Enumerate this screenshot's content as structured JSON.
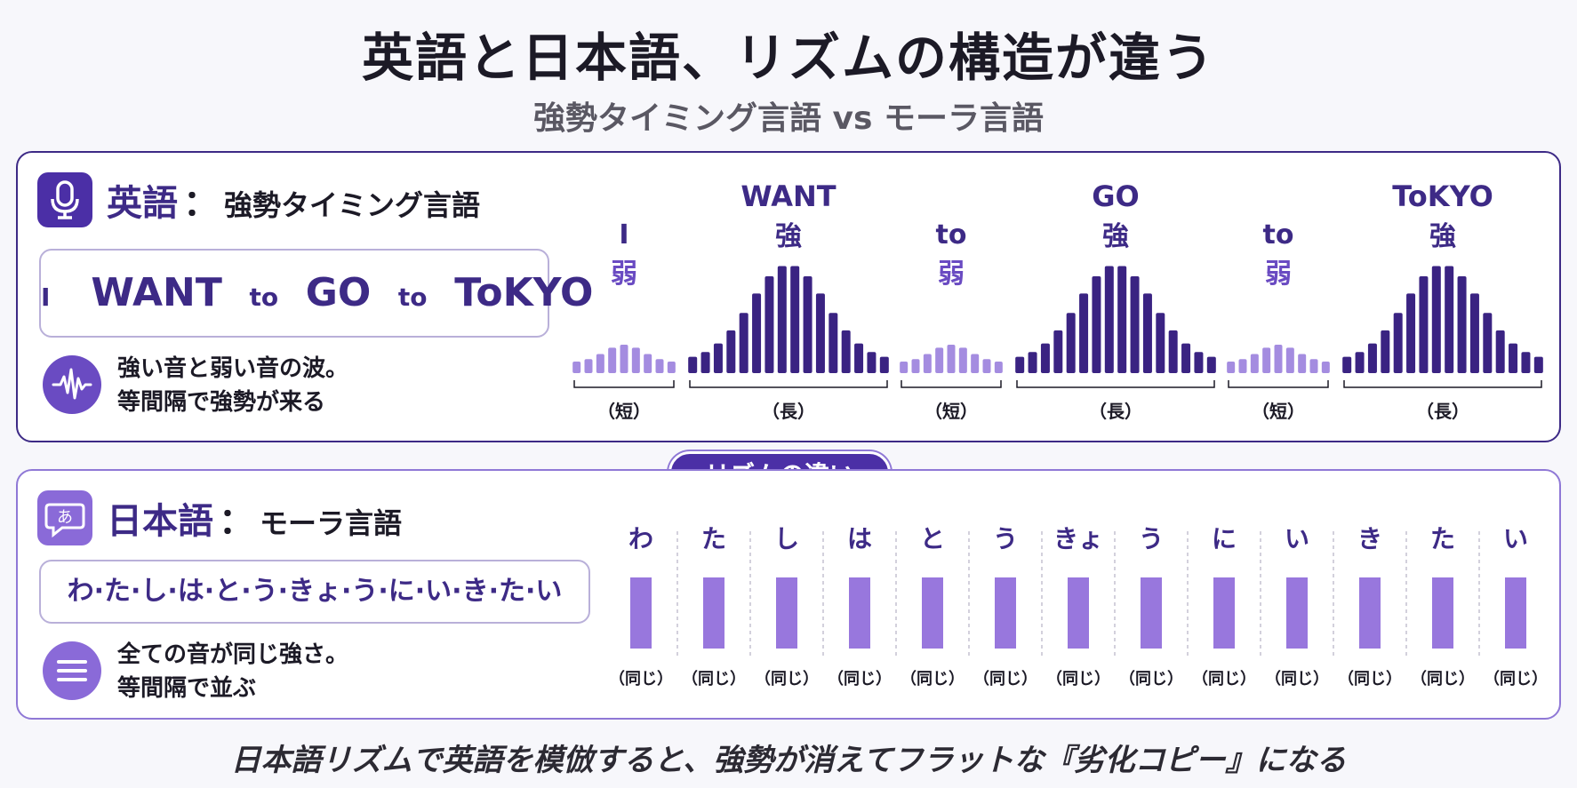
{
  "title": "英語と日本語、リズムの構造が違う",
  "subtitle": "強勢タイミング言語 vs モーラ言語",
  "english": {
    "lang": "英語",
    "colon": "：",
    "kind": "強勢タイミング言語",
    "sentence": {
      "w1": "I",
      "w2": "WANT",
      "w3": "to",
      "w4": "GO",
      "w5": "to",
      "w6": "ToKYO"
    },
    "desc_line1": "強い音と弱い音の波。",
    "desc_line2": "等間隔で強勢が来る",
    "icon_top": "microphone-icon",
    "icon_desc": "waveform-icon",
    "words": [
      {
        "word": "I",
        "stress": "弱",
        "length": "（短）",
        "strong": false
      },
      {
        "word": "WANT",
        "stress": "強",
        "length": "（長）",
        "strong": true
      },
      {
        "word": "to",
        "stress": "弱",
        "length": "（短）",
        "strong": false
      },
      {
        "word": "GO",
        "stress": "強",
        "length": "（長）",
        "strong": true
      },
      {
        "word": "to",
        "stress": "弱",
        "length": "（短）",
        "strong": false
      },
      {
        "word": "ToKYO",
        "stress": "強",
        "length": "（長）",
        "strong": true
      }
    ]
  },
  "badge": "リズムの違い",
  "japanese": {
    "lang": "日本語",
    "colon": "：",
    "kind": "モーラ言語",
    "sentence": "わ·た·し·は·と·う·きょ·う·に·い·き·た·い",
    "desc_line1": "全ての音が同じ強さ。",
    "desc_line2": "等間隔で並ぶ",
    "icon_top": "speech-bubble-a-icon",
    "icon_desc": "equal-lines-icon",
    "morae": [
      "わ",
      "た",
      "し",
      "は",
      "と",
      "う",
      "きょ",
      "う",
      "に",
      "い",
      "き",
      "た",
      "い"
    ],
    "mora_label": "（同じ）"
  },
  "footer": "日本語リズムで英語を模倣すると、強勢が消えてフラットな『劣化コピー』になる",
  "colors": {
    "dark_purple": "#3d2a86",
    "strong_bar": "#3a2382",
    "weak_bar": "#a48ce0",
    "mora_bar": "#9877dd"
  }
}
